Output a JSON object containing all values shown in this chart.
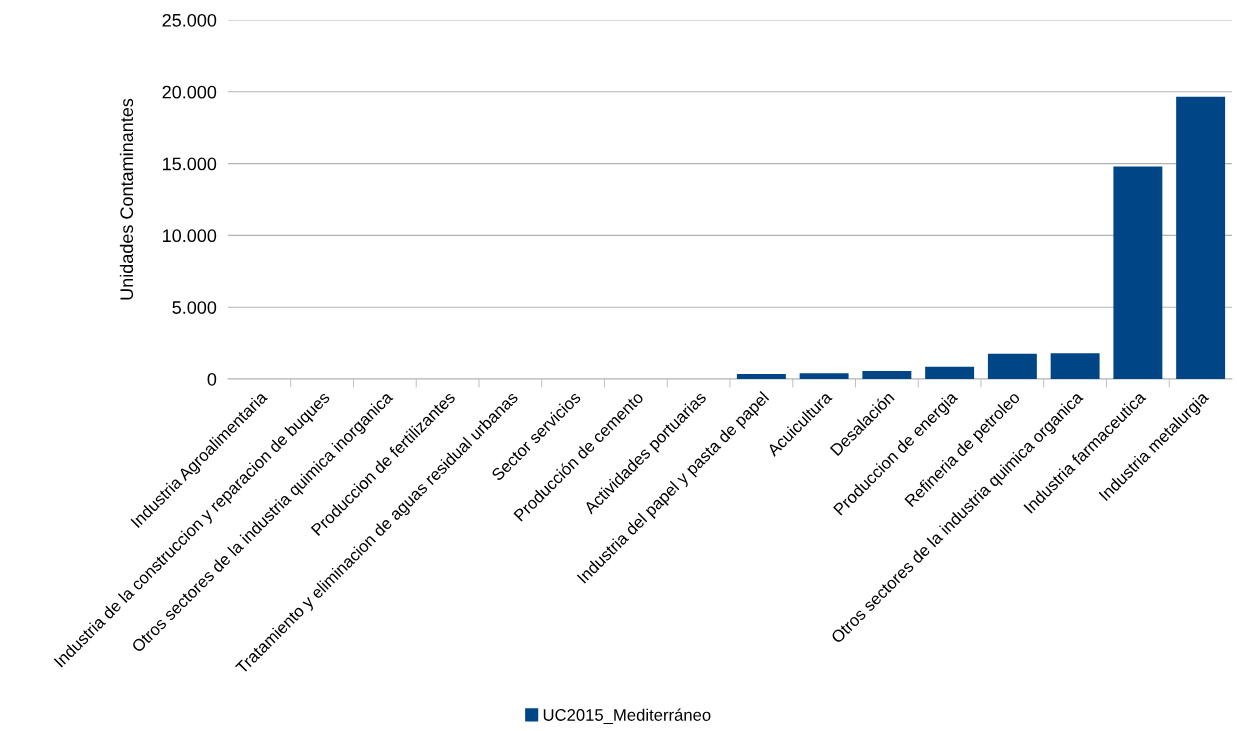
{
  "chart_data": {
    "type": "bar",
    "ylabel": "Unidades Contaminantes",
    "categories": [
      "Industria Agroalimentaria",
      "Industria de la construccion y reparacion de buques",
      "Otros sectores de la industria quimica inorganica",
      "Produccion de fertilizantes",
      "Tratamiento y eliminacion de aguas residual urbanas",
      "Sector servicios",
      "Producción de cemento",
      "Actividades portuarias",
      "Industria del papel y pasta de papel",
      "Acuicultura",
      "Desalación",
      "Produccion de energia",
      "Refineria de petroleo",
      "Otros sectores de la industria quimica organica",
      "Industria farmaceutica",
      "Industria metalurgia"
    ],
    "series": [
      {
        "name": "UC2015_Mediterráneo",
        "color": "#004586",
        "values": [
          0,
          0,
          0,
          0,
          0,
          0,
          0,
          0,
          350,
          400,
          550,
          850,
          1750,
          1800,
          14800,
          19650
        ]
      }
    ],
    "ylim": [
      0,
      25000
    ],
    "yticks": [
      0,
      {
        "value": 5000,
        "label": "5.000"
      },
      {
        "value": 10000,
        "label": "10.000"
      },
      {
        "value": 15000,
        "label": "15.000"
      },
      {
        "value": 20000,
        "label": "20.000"
      },
      {
        "value": 25000,
        "label": "25.000"
      }
    ],
    "grid": "y",
    "legend": "bottom"
  }
}
